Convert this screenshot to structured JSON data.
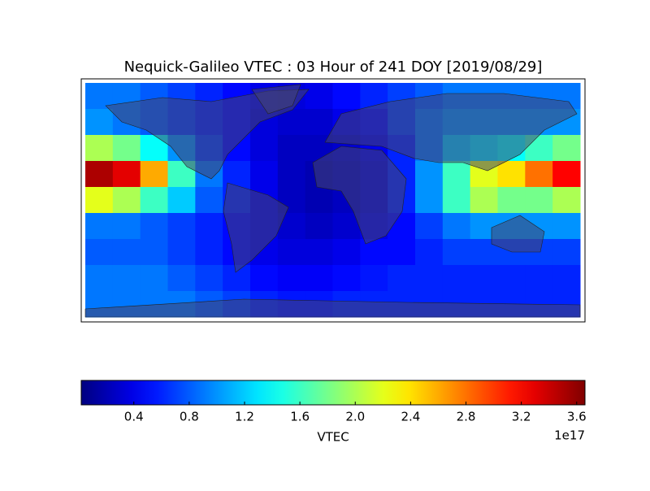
{
  "chart_data": {
    "type": "heatmap",
    "title": "Nequick-Galileo VTEC : 03 Hour of 241 DOY [2019/08/29]",
    "values": [
      [
        0.9,
        0.9,
        0.8,
        0.7,
        0.6,
        0.5,
        0.4,
        0.35,
        0.4,
        0.5,
        0.6,
        0.7,
        0.8,
        0.9,
        0.9,
        0.9,
        0.9,
        0.9
      ],
      [
        1.0,
        0.9,
        0.8,
        0.7,
        0.6,
        0.5,
        0.35,
        0.3,
        0.3,
        0.4,
        0.5,
        0.7,
        0.9,
        1.0,
        1.0,
        1.0,
        1.0,
        1.0
      ],
      [
        2.0,
        1.8,
        1.4,
        1.0,
        0.7,
        0.5,
        0.35,
        0.25,
        0.25,
        0.3,
        0.4,
        0.6,
        0.9,
        1.2,
        1.3,
        1.4,
        1.6,
        1.8
      ],
      [
        3.5,
        3.3,
        2.6,
        1.6,
        0.9,
        0.6,
        0.4,
        0.25,
        0.2,
        0.25,
        0.35,
        0.6,
        1.0,
        1.6,
        2.2,
        2.4,
        2.8,
        3.2
      ],
      [
        2.2,
        2.0,
        1.6,
        1.2,
        0.8,
        0.6,
        0.4,
        0.25,
        0.2,
        0.25,
        0.35,
        0.6,
        1.0,
        1.6,
        2.0,
        1.8,
        1.8,
        2.0
      ],
      [
        0.9,
        0.9,
        0.8,
        0.7,
        0.6,
        0.5,
        0.4,
        0.3,
        0.25,
        0.3,
        0.4,
        0.5,
        0.7,
        0.9,
        1.0,
        1.0,
        1.0,
        1.0
      ],
      [
        0.8,
        0.8,
        0.8,
        0.7,
        0.6,
        0.5,
        0.4,
        0.35,
        0.35,
        0.4,
        0.5,
        0.5,
        0.6,
        0.7,
        0.7,
        0.7,
        0.7,
        0.7
      ],
      [
        0.9,
        0.9,
        0.9,
        0.8,
        0.7,
        0.6,
        0.5,
        0.45,
        0.45,
        0.5,
        0.55,
        0.6,
        0.6,
        0.6,
        0.6,
        0.6,
        0.6,
        0.6
      ],
      [
        0.9,
        0.9,
        0.9,
        0.9,
        0.8,
        0.7,
        0.6,
        0.55,
        0.55,
        0.6,
        0.6,
        0.6,
        0.6,
        0.6,
        0.6,
        0.6,
        0.6,
        0.6
      ]
    ],
    "colorbar": {
      "label": "VTEC",
      "offset_label": "1e17",
      "lim": [
        0.02,
        3.66
      ],
      "ticks": [
        0.4,
        0.8,
        1.2,
        1.6,
        {
          "value": 2,
          "label": "2.0"
        },
        2.4,
        2.8,
        3.2,
        3.6
      ]
    }
  }
}
